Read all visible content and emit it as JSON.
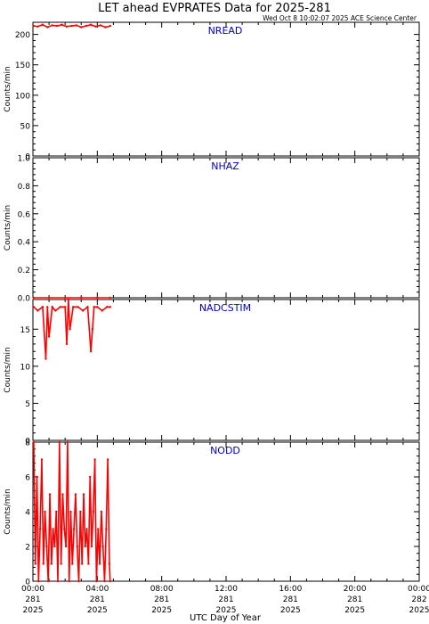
{
  "header": {
    "title": "LET ahead EVPRATES Data for 2025-281",
    "timestamp": "Wed Oct  8 10:02:07 2025 ACE Science Center"
  },
  "x_axis": {
    "label": "UTC Day of Year",
    "ticks": [
      {
        "time": "00:00",
        "doy": "281",
        "year": "2025"
      },
      {
        "time": "04:00",
        "doy": "281",
        "year": "2025"
      },
      {
        "time": "08:00",
        "doy": "281",
        "year": "2025"
      },
      {
        "time": "12:00",
        "doy": "281",
        "year": "2025"
      },
      {
        "time": "16:00",
        "doy": "281",
        "year": "2025"
      },
      {
        "time": "20:00",
        "doy": "281",
        "year": "2025"
      },
      {
        "time": "00:00",
        "doy": "282",
        "year": "2025"
      }
    ]
  },
  "colors": {
    "data": "#ff0000",
    "panel_label": "#0000cc",
    "axis": "#000000"
  },
  "chart_data": [
    {
      "type": "line",
      "name": "NREAD",
      "ylabel": "Counts/min",
      "ylim": [
        0,
        220
      ],
      "yticks": [
        0,
        50,
        100,
        150,
        200
      ],
      "xlim": [
        0,
        24
      ],
      "x": [
        0.05,
        0.3,
        0.6,
        0.9,
        1.2,
        1.5,
        1.8,
        2.1,
        2.4,
        2.7,
        3.0,
        3.3,
        3.6,
        3.9,
        4.2,
        4.5,
        4.8
      ],
      "values": [
        214,
        213,
        216,
        212,
        215,
        214,
        216,
        213,
        214,
        215,
        212,
        214,
        216,
        213,
        215,
        212,
        214
      ]
    },
    {
      "type": "line",
      "name": "NHAZ",
      "ylabel": "Counts/min",
      "ylim": [
        0,
        1.0
      ],
      "yticks": [
        0.0,
        0.2,
        0.4,
        0.6,
        0.8,
        1.0
      ],
      "xlim": [
        0,
        24
      ],
      "x": [
        0.05,
        1.0,
        2.0,
        3.0,
        4.0,
        4.8
      ],
      "values": [
        0,
        0,
        0,
        0,
        0,
        0
      ]
    },
    {
      "type": "line",
      "name": "NADCSTIM",
      "ylabel": "Counts/min",
      "ylim": [
        0,
        19
      ],
      "yticks": [
        0,
        5,
        10,
        15
      ],
      "xlim": [
        0,
        24
      ],
      "x": [
        0.05,
        0.3,
        0.6,
        0.8,
        0.9,
        1.0,
        1.2,
        1.4,
        1.7,
        2.0,
        2.1,
        2.2,
        2.3,
        2.5,
        2.8,
        3.1,
        3.4,
        3.6,
        3.7,
        3.8,
        4.0,
        4.3,
        4.6,
        4.8
      ],
      "values": [
        18,
        17.5,
        18,
        11,
        18,
        14,
        18,
        17.5,
        18,
        18,
        13,
        19,
        15,
        18,
        18,
        17.5,
        18,
        12,
        15,
        18,
        18,
        17.5,
        18,
        18
      ]
    },
    {
      "type": "line",
      "name": "NODD",
      "ylabel": "Counts/min",
      "ylim": [
        0,
        8
      ],
      "yticks": [
        0,
        2,
        4,
        6,
        8
      ],
      "xlim": [
        0,
        24
      ],
      "x": [
        0.05,
        0.15,
        0.25,
        0.35,
        0.45,
        0.55,
        0.65,
        0.75,
        0.85,
        0.95,
        1.05,
        1.15,
        1.25,
        1.35,
        1.45,
        1.55,
        1.65,
        1.75,
        1.85,
        1.95,
        2.05,
        2.15,
        2.25,
        2.35,
        2.45,
        2.55,
        2.65,
        2.75,
        2.85,
        2.95,
        3.05,
        3.15,
        3.25,
        3.35,
        3.45,
        3.55,
        3.65,
        3.75,
        3.85,
        3.95,
        4.05,
        4.15,
        4.25,
        4.35,
        4.45,
        4.55,
        4.65,
        4.75,
        4.8
      ],
      "values": [
        8,
        1,
        6,
        0,
        3,
        7,
        1,
        4,
        2,
        0,
        5,
        1,
        3,
        2,
        4,
        0,
        8,
        1,
        5,
        3,
        2,
        8,
        0,
        4,
        1,
        3,
        5,
        2,
        0,
        4,
        1,
        5,
        2,
        3,
        1,
        6,
        2,
        4,
        7,
        0,
        3,
        1,
        4,
        2,
        0,
        3,
        7,
        1,
        0
      ]
    }
  ]
}
